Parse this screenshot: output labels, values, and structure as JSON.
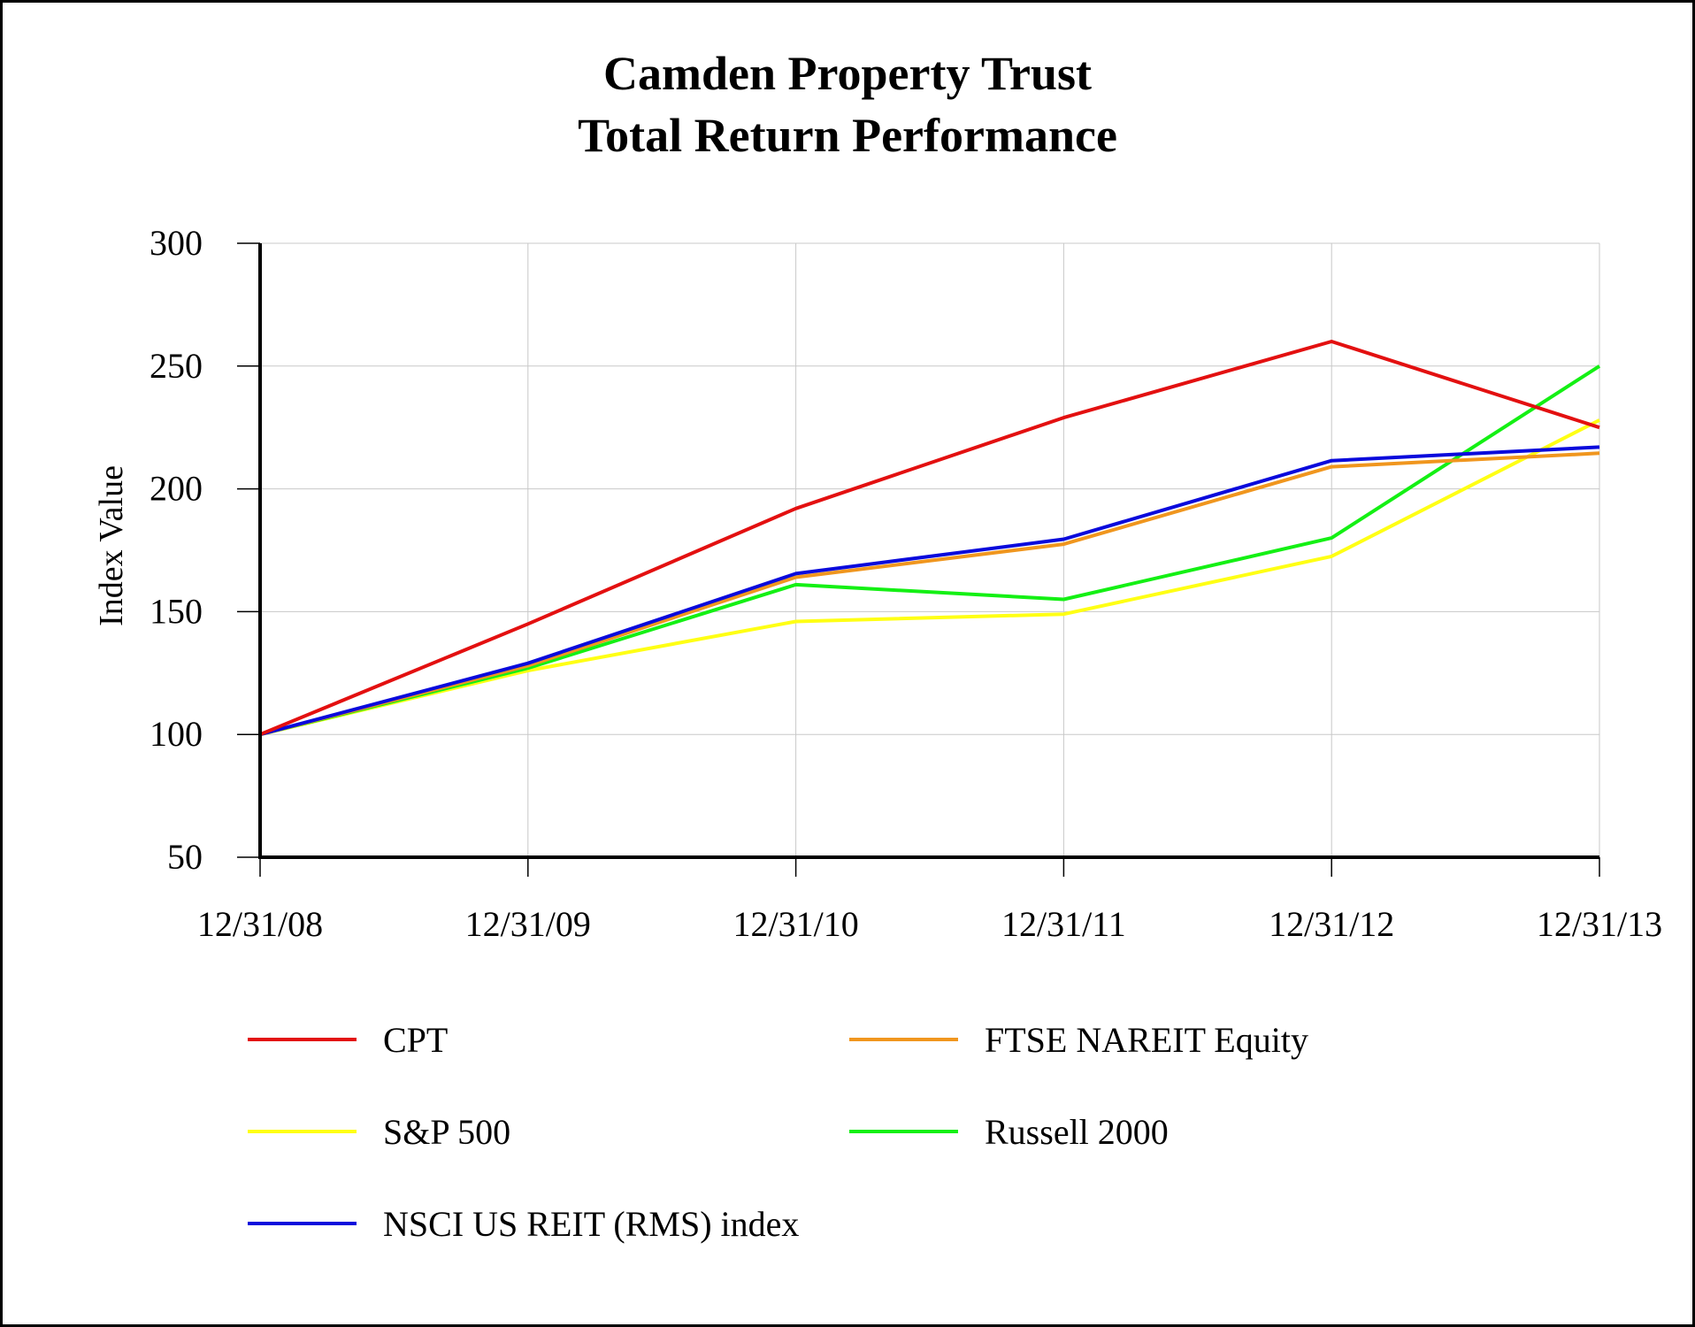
{
  "chart_data": {
    "type": "line",
    "title": "Camden Property Trust",
    "subtitle": "Total Return Performance",
    "xlabel": "",
    "ylabel": "Index Value",
    "ylim": [
      50,
      300
    ],
    "yticks": [
      "300",
      "250",
      "200",
      "150",
      "100",
      "50"
    ],
    "ytick_values": [
      300,
      250,
      200,
      150,
      100,
      50
    ],
    "categories": [
      "12/31/08",
      "12/31/09",
      "12/31/10",
      "12/31/11",
      "12/31/12",
      "12/31/13"
    ],
    "grid": true,
    "legend_position": "bottom",
    "series": [
      {
        "name": "CPT",
        "color": "#e31010",
        "values": [
          100,
          145,
          192,
          229,
          260,
          225
        ]
      },
      {
        "name": "FTSE NAREIT Equity",
        "color": "#f0961e",
        "values": [
          100,
          128,
          164,
          177.5,
          209,
          214.5
        ]
      },
      {
        "name": "S&P 500",
        "color": "#ffff14",
        "values": [
          100,
          126,
          146,
          149,
          172.5,
          228
        ]
      },
      {
        "name": "Russell 2000",
        "color": "#14f014",
        "values": [
          100,
          127,
          161,
          155,
          180,
          250
        ]
      },
      {
        "name": "NSCI US REIT (RMS) index",
        "color": "#0a0adc",
        "values": [
          100,
          129,
          165.5,
          179.5,
          211.5,
          217
        ]
      }
    ],
    "draw_order": [
      2,
      3,
      1,
      4,
      0
    ]
  }
}
